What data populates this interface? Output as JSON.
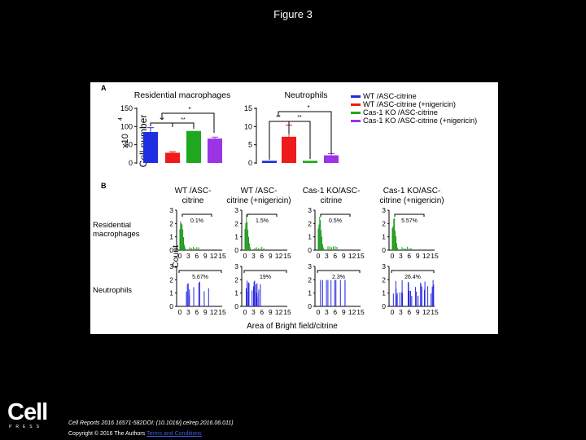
{
  "page": {
    "title": "Figure 3"
  },
  "panel_a": {
    "label": "A",
    "ylabel_main": "Cell number",
    "ylabel_unit_base": "x10",
    "ylabel_unit_exp": "4",
    "chart1": {
      "title": "Residential macrophages",
      "ticks": [
        "150",
        "100",
        "50",
        "0"
      ],
      "sig": [
        "**",
        "**",
        "*"
      ]
    },
    "chart2": {
      "title": "Neutrophils",
      "ticks": [
        "15",
        "10",
        "5",
        "0"
      ],
      "sig": [
        "**",
        "**",
        "*"
      ]
    },
    "legend": [
      "WT /ASC-citrine",
      "WT /ASC-citrine (+nigericin)",
      "Cas-1 KO /ASC-citrine",
      "Cas-1 KO /ASC-citrine (+nigericin)"
    ],
    "colors": [
      "#1f2ee0",
      "#ef1b1b",
      "#1fa81f",
      "#9b34e6"
    ]
  },
  "chart_data": [
    {
      "type": "bar",
      "title": "Residential macrophages",
      "ylabel": "Cell number x10^4",
      "ylim": [
        0,
        150
      ],
      "categories": [
        "WT /ASC-citrine",
        "WT /ASC-citrine (+nigericin)",
        "Cas-1 KO /ASC-citrine",
        "Cas-1 KO /ASC-citrine (+nigericin)"
      ],
      "values": [
        85,
        28,
        88,
        67
      ],
      "errors": [
        12,
        3,
        0,
        4
      ]
    },
    {
      "type": "bar",
      "title": "Neutrophils",
      "ylabel": "Cell number x10^4",
      "ylim": [
        0,
        15
      ],
      "categories": [
        "WT /ASC-citrine",
        "WT /ASC-citrine (+nigericin)",
        "Cas-1 KO /ASC-citrine",
        "Cas-1 KO /ASC-citrine (+nigericin)"
      ],
      "values": [
        0.6,
        7.2,
        0.6,
        2.1
      ],
      "errors": [
        0,
        3.2,
        0,
        0.5
      ]
    }
  ],
  "panel_b": {
    "label": "B",
    "col_headers": [
      [
        "WT /ASC-",
        "citrine"
      ],
      [
        "WT /ASC-",
        "citrine (+nigericin)"
      ],
      [
        "Cas-1 KO/ASC-",
        "citrine"
      ],
      [
        "Cas-1 KO/ASC-",
        "citrine (+nigericin)"
      ]
    ],
    "row_labels": [
      [
        "Residential",
        "macrophages"
      ],
      [
        "Neutrophils"
      ]
    ],
    "ylabel": "Count",
    "xlabel": "Area of Bright field/citrine",
    "yticks": [
      "3",
      "2",
      "1",
      "0"
    ],
    "xticks": [
      "0",
      "3",
      "6",
      "9",
      "12",
      "15"
    ],
    "percentages": [
      [
        "0.1%",
        "1.5%",
        "0.5%",
        "5.57%"
      ],
      [
        "5.67%",
        "19%",
        "2.3%",
        "26.4%"
      ]
    ]
  },
  "footer": {
    "logo_word": "Cell",
    "logo_press": "PRESS",
    "citation": "Cell Reports 2016 16571-582DOI: (10.1016/j.celrep.2016.06.011)",
    "copyright": "Copyright © 2016 The Authors",
    "terms": "Terms and Conditions"
  }
}
